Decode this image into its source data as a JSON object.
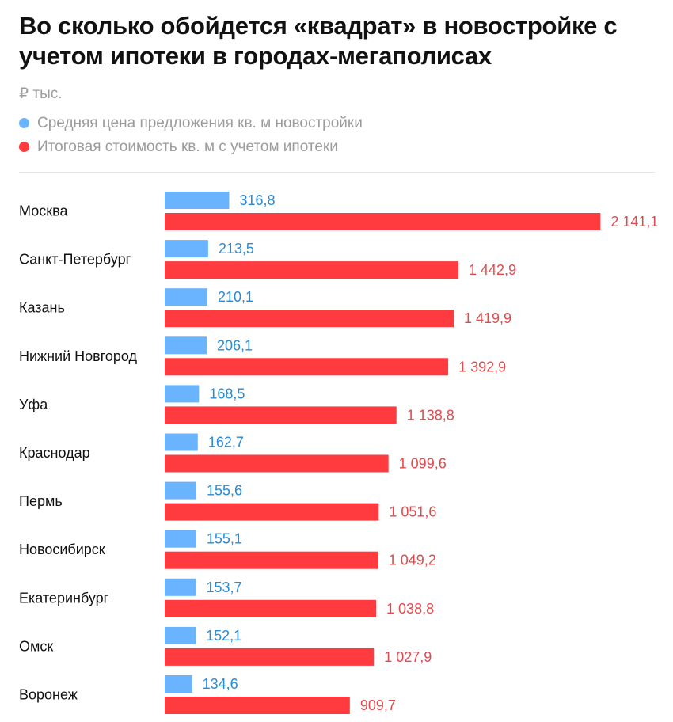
{
  "header": {
    "title": "Во сколько обойдется «квадрат» в новостройке с учетом ипотеки в городах-мегаполисах",
    "unit": "₽ тыс."
  },
  "chart_data": {
    "type": "bar",
    "orientation": "horizontal",
    "unit": "₽ тыс.",
    "categories": [
      "Москва",
      "Санкт-Петербург",
      "Казань",
      "Нижний Новгород",
      "Уфа",
      "Краснодар",
      "Пермь",
      "Новосибирск",
      "Екатеринбург",
      "Омск",
      "Воронеж"
    ],
    "series": [
      {
        "name": "Средняя цена предложения кв. м новостройки",
        "color": "#6ab4ff",
        "label_color": "#2a8ad6",
        "values": [
          316.8,
          213.5,
          210.1,
          206.1,
          168.5,
          162.7,
          155.6,
          155.1,
          153.7,
          152.1,
          134.6
        ],
        "labels": [
          "316,8",
          "213,5",
          "210,1",
          "206,1",
          "168,5",
          "162,7",
          "155,6",
          "155,1",
          "153,7",
          "152,1",
          "134,6"
        ]
      },
      {
        "name": "Итоговая стоимость кв. м с учетом ипотеки",
        "color": "#ff3b40",
        "label_color": "#e04a4e",
        "values": [
          2141.1,
          1442.9,
          1419.9,
          1392.9,
          1138.8,
          1099.6,
          1051.6,
          1049.2,
          1038.8,
          1027.9,
          909.7
        ],
        "labels": [
          "2 141,1",
          "1 442,9",
          "1 419,9",
          "1 392,9",
          "1 138,8",
          "1 099,6",
          "1 051,6",
          "1 049,2",
          "1 038,8",
          "1 027,9",
          "909,7"
        ]
      }
    ],
    "legend": "top-left",
    "grid": false
  }
}
